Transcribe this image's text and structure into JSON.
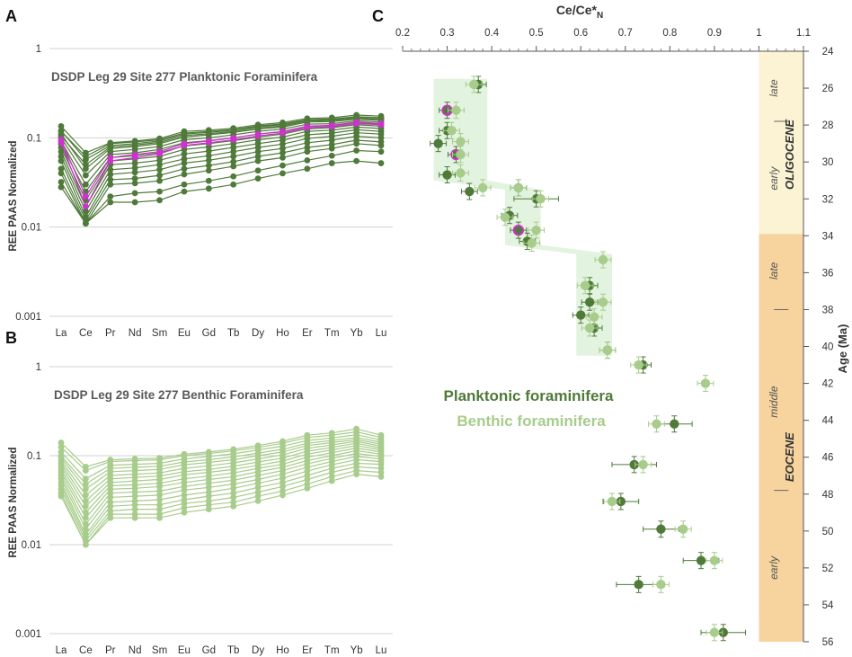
{
  "panels": {
    "a_label": "A",
    "b_label": "B",
    "c_label": "C"
  },
  "colors": {
    "planktonic": "#4f7a3a",
    "benthic": "#a8cc8c",
    "highlight": "#cc33cc",
    "oligocene_bg": "#fbf3d4",
    "eocene_bg": "#f7d39e",
    "band_fill": "#dff2dc"
  },
  "chart_data": [
    {
      "type": "line",
      "title": "DSDP Leg 29 Site 277 Planktonic Foraminifera",
      "ylabel": "REE PAAS Normalized",
      "yscale": "log",
      "ylim": [
        0.001,
        1
      ],
      "yticks": [
        "1",
        "0.1",
        "0.01",
        "0.001"
      ],
      "categories": [
        "La",
        "Ce",
        "Pr",
        "Nd",
        "Sm",
        "Eu",
        "Gd",
        "Tb",
        "Dy",
        "Ho",
        "Er",
        "Tm",
        "Yb",
        "Lu"
      ],
      "series": [
        {
          "name": "p1",
          "values": [
            0.135,
            0.068,
            0.088,
            0.092,
            0.098,
            0.118,
            0.122,
            0.128,
            0.14,
            0.148,
            0.165,
            0.168,
            0.18,
            0.175
          ]
        },
        {
          "name": "p2",
          "values": [
            0.12,
            0.057,
            0.082,
            0.086,
            0.092,
            0.11,
            0.115,
            0.122,
            0.133,
            0.14,
            0.158,
            0.16,
            0.17,
            0.165
          ]
        },
        {
          "name": "p3",
          "values": [
            0.11,
            0.045,
            0.076,
            0.08,
            0.086,
            0.102,
            0.108,
            0.115,
            0.125,
            0.132,
            0.15,
            0.152,
            0.162,
            0.157
          ]
        },
        {
          "name": "p4",
          "values": [
            0.1,
            0.038,
            0.07,
            0.074,
            0.08,
            0.095,
            0.1,
            0.108,
            0.118,
            0.125,
            0.142,
            0.144,
            0.155,
            0.15
          ]
        },
        {
          "name": "p5",
          "values": [
            0.092,
            0.03,
            0.065,
            0.068,
            0.074,
            0.088,
            0.093,
            0.1,
            0.11,
            0.117,
            0.134,
            0.137,
            0.148,
            0.142
          ]
        },
        {
          "name": "p6",
          "values": [
            0.085,
            0.025,
            0.06,
            0.063,
            0.068,
            0.081,
            0.086,
            0.093,
            0.102,
            0.11,
            0.126,
            0.13,
            0.14,
            0.135
          ]
        },
        {
          "name": "p7",
          "values": [
            0.078,
            0.02,
            0.055,
            0.058,
            0.062,
            0.074,
            0.079,
            0.086,
            0.095,
            0.102,
            0.118,
            0.122,
            0.132,
            0.127
          ]
        },
        {
          "name": "p8",
          "values": [
            0.07,
            0.017,
            0.05,
            0.052,
            0.056,
            0.066,
            0.071,
            0.078,
            0.086,
            0.094,
            0.108,
            0.113,
            0.123,
            0.118
          ]
        },
        {
          "name": "p9",
          "values": [
            0.062,
            0.015,
            0.044,
            0.046,
            0.05,
            0.058,
            0.063,
            0.07,
            0.078,
            0.085,
            0.098,
            0.104,
            0.114,
            0.11
          ]
        },
        {
          "name": "p10",
          "values": [
            0.055,
            0.013,
            0.039,
            0.041,
            0.044,
            0.052,
            0.056,
            0.062,
            0.07,
            0.076,
            0.088,
            0.094,
            0.104,
            0.1
          ]
        },
        {
          "name": "p11",
          "values": [
            0.045,
            0.012,
            0.034,
            0.035,
            0.038,
            0.045,
            0.049,
            0.054,
            0.062,
            0.068,
            0.078,
            0.084,
            0.094,
            0.09
          ]
        },
        {
          "name": "p12",
          "values": [
            0.04,
            0.011,
            0.03,
            0.031,
            0.033,
            0.039,
            0.043,
            0.048,
            0.055,
            0.06,
            0.07,
            0.076,
            0.086,
            0.082
          ]
        },
        {
          "name": "p13",
          "values": [
            0.032,
            0.011,
            0.022,
            0.024,
            0.025,
            0.03,
            0.033,
            0.037,
            0.043,
            0.049,
            0.056,
            0.063,
            0.072,
            0.07
          ]
        },
        {
          "name": "p14",
          "values": [
            0.028,
            0.011,
            0.019,
            0.019,
            0.02,
            0.025,
            0.027,
            0.03,
            0.035,
            0.04,
            0.045,
            0.052,
            0.055,
            0.052
          ]
        },
        {
          "name": "p15",
          "values": [
            0.118,
            0.062,
            0.086,
            0.09,
            0.095,
            0.113,
            0.118,
            0.124,
            0.136,
            0.143,
            0.16,
            0.163,
            0.172,
            0.168
          ]
        },
        {
          "name": "p16",
          "values": [
            0.105,
            0.05,
            0.079,
            0.083,
            0.089,
            0.106,
            0.111,
            0.118,
            0.129,
            0.136,
            0.154,
            0.156,
            0.166,
            0.16
          ]
        },
        {
          "name": "h1",
          "highlight": true,
          "values": [
            0.095,
            0.022,
            0.06,
            0.065,
            0.07,
            0.086,
            0.092,
            0.1,
            0.11,
            0.118,
            0.135,
            0.138,
            0.15,
            0.145
          ]
        },
        {
          "name": "h2",
          "highlight": true,
          "values": [
            0.088,
            0.017,
            0.055,
            0.06,
            0.066,
            0.082,
            0.088,
            0.095,
            0.105,
            0.113,
            0.13,
            0.133,
            0.144,
            0.14
          ]
        }
      ]
    },
    {
      "type": "line",
      "title": "DSDP Leg 29 Site 277 Benthic Foraminifera",
      "ylabel": "REE PAAS Normalized",
      "yscale": "log",
      "ylim": [
        0.001,
        1
      ],
      "yticks": [
        "1",
        "0.1",
        "0.01",
        "0.001"
      ],
      "categories": [
        "La",
        "Ce",
        "Pr",
        "Nd",
        "Sm",
        "Eu",
        "Gd",
        "Tb",
        "Dy",
        "Ho",
        "Er",
        "Tm",
        "Yb",
        "Lu"
      ],
      "series": [
        {
          "name": "b1",
          "values": [
            0.14,
            0.075,
            0.09,
            0.092,
            0.094,
            0.104,
            0.11,
            0.118,
            0.13,
            0.145,
            0.17,
            0.18,
            0.2,
            0.17
          ]
        },
        {
          "name": "b2",
          "values": [
            0.125,
            0.068,
            0.086,
            0.088,
            0.09,
            0.1,
            0.106,
            0.113,
            0.124,
            0.138,
            0.16,
            0.17,
            0.185,
            0.16
          ]
        },
        {
          "name": "b3",
          "values": [
            0.11,
            0.055,
            0.078,
            0.08,
            0.082,
            0.092,
            0.098,
            0.105,
            0.116,
            0.128,
            0.148,
            0.158,
            0.172,
            0.15
          ]
        },
        {
          "name": "b4",
          "values": [
            0.1,
            0.048,
            0.072,
            0.074,
            0.076,
            0.085,
            0.09,
            0.097,
            0.107,
            0.118,
            0.138,
            0.148,
            0.16,
            0.142
          ]
        },
        {
          "name": "b5",
          "values": [
            0.095,
            0.042,
            0.066,
            0.068,
            0.07,
            0.079,
            0.084,
            0.09,
            0.1,
            0.11,
            0.13,
            0.14,
            0.152,
            0.135
          ]
        },
        {
          "name": "b6",
          "values": [
            0.088,
            0.036,
            0.06,
            0.062,
            0.064,
            0.072,
            0.077,
            0.083,
            0.092,
            0.102,
            0.121,
            0.132,
            0.145,
            0.128
          ]
        },
        {
          "name": "b7",
          "values": [
            0.082,
            0.031,
            0.055,
            0.057,
            0.059,
            0.066,
            0.07,
            0.076,
            0.085,
            0.094,
            0.112,
            0.124,
            0.138,
            0.122
          ]
        },
        {
          "name": "b8",
          "values": [
            0.076,
            0.027,
            0.05,
            0.052,
            0.054,
            0.061,
            0.065,
            0.07,
            0.078,
            0.087,
            0.104,
            0.116,
            0.13,
            0.116
          ]
        },
        {
          "name": "b9",
          "values": [
            0.07,
            0.023,
            0.046,
            0.047,
            0.049,
            0.055,
            0.059,
            0.064,
            0.072,
            0.08,
            0.096,
            0.108,
            0.122,
            0.11
          ]
        },
        {
          "name": "b10",
          "values": [
            0.065,
            0.02,
            0.042,
            0.043,
            0.045,
            0.05,
            0.054,
            0.058,
            0.066,
            0.074,
            0.088,
            0.1,
            0.114,
            0.104
          ]
        },
        {
          "name": "b11",
          "values": [
            0.06,
            0.017,
            0.038,
            0.039,
            0.04,
            0.045,
            0.049,
            0.053,
            0.06,
            0.068,
            0.081,
            0.093,
            0.106,
            0.098
          ]
        },
        {
          "name": "b12",
          "values": [
            0.055,
            0.015,
            0.034,
            0.035,
            0.036,
            0.041,
            0.044,
            0.048,
            0.054,
            0.062,
            0.074,
            0.086,
            0.098,
            0.092
          ]
        },
        {
          "name": "b13",
          "values": [
            0.05,
            0.013,
            0.03,
            0.031,
            0.032,
            0.036,
            0.039,
            0.043,
            0.049,
            0.056,
            0.067,
            0.079,
            0.09,
            0.086
          ]
        },
        {
          "name": "b14",
          "values": [
            0.046,
            0.012,
            0.027,
            0.028,
            0.028,
            0.032,
            0.035,
            0.038,
            0.044,
            0.05,
            0.06,
            0.072,
            0.082,
            0.08
          ]
        },
        {
          "name": "b15",
          "values": [
            0.042,
            0.011,
            0.024,
            0.025,
            0.025,
            0.029,
            0.031,
            0.034,
            0.039,
            0.045,
            0.054,
            0.065,
            0.075,
            0.072
          ]
        },
        {
          "name": "b16",
          "values": [
            0.038,
            0.01,
            0.022,
            0.022,
            0.022,
            0.026,
            0.028,
            0.03,
            0.035,
            0.04,
            0.048,
            0.058,
            0.068,
            0.065
          ]
        },
        {
          "name": "b17",
          "values": [
            0.035,
            0.01,
            0.02,
            0.02,
            0.02,
            0.023,
            0.025,
            0.027,
            0.031,
            0.036,
            0.043,
            0.052,
            0.062,
            0.058
          ]
        }
      ]
    },
    {
      "type": "scatter",
      "xlabel": "Ce/Ce*N",
      "ylabel": "Age (Ma)",
      "xlim": [
        0.2,
        1.1
      ],
      "ylim": [
        24,
        56
      ],
      "xticks": [
        "0.2",
        "0.3",
        "0.4",
        "0.5",
        "0.6",
        "0.7",
        "0.8",
        "0.9",
        "1",
        "1.1"
      ],
      "yticks": [
        "24",
        "26",
        "28",
        "30",
        "32",
        "34",
        "36",
        "38",
        "40",
        "42",
        "44",
        "46",
        "48",
        "50",
        "52",
        "54",
        "56"
      ],
      "legend": [
        {
          "label": "Planktonic foraminifera"
        },
        {
          "label": "Benthic foraminifera"
        }
      ],
      "epochs": [
        {
          "name": "OLIGOCENE",
          "from": 24,
          "to": 33.9,
          "subdivisions": [
            "late",
            "early"
          ],
          "boundary": 27.8
        },
        {
          "name": "EOCENE",
          "from": 33.9,
          "to": 56,
          "subdivisions": [
            "late",
            "middle",
            "early"
          ],
          "boundaries": [
            38,
            47.8
          ]
        }
      ],
      "planktonic": [
        {
          "x": 0.37,
          "y": 25.8
        },
        {
          "x": 0.3,
          "y": 27.2,
          "highlight": true
        },
        {
          "x": 0.3,
          "y": 28.3
        },
        {
          "x": 0.28,
          "y": 29.0
        },
        {
          "x": 0.32,
          "y": 29.6,
          "highlight": true
        },
        {
          "x": 0.3,
          "y": 30.7
        },
        {
          "x": 0.35,
          "y": 31.6
        },
        {
          "x": 0.46,
          "y": 31.4
        },
        {
          "x": 0.5,
          "y": 32.0,
          "err": 0.05
        },
        {
          "x": 0.44,
          "y": 32.9
        },
        {
          "x": 0.46,
          "y": 33.7,
          "highlight": true
        },
        {
          "x": 0.48,
          "y": 34.3
        },
        {
          "x": 0.62,
          "y": 36.7
        },
        {
          "x": 0.62,
          "y": 37.6
        },
        {
          "x": 0.6,
          "y": 38.3
        },
        {
          "x": 0.63,
          "y": 39.0
        },
        {
          "x": 0.66,
          "y": 40.2
        },
        {
          "x": 0.74,
          "y": 41.0
        },
        {
          "x": 0.81,
          "y": 44.2,
          "err": 0.04
        },
        {
          "x": 0.72,
          "y": 46.4,
          "err": 0.05
        },
        {
          "x": 0.69,
          "y": 48.4,
          "err": 0.04
        },
        {
          "x": 0.78,
          "y": 49.9,
          "err": 0.04
        },
        {
          "x": 0.87,
          "y": 51.6,
          "err": 0.04
        },
        {
          "x": 0.73,
          "y": 52.9,
          "err": 0.05
        },
        {
          "x": 0.92,
          "y": 55.5,
          "err": 0.05
        }
      ],
      "benthic": [
        {
          "x": 0.36,
          "y": 25.8
        },
        {
          "x": 0.32,
          "y": 27.2
        },
        {
          "x": 0.31,
          "y": 28.3
        },
        {
          "x": 0.33,
          "y": 28.9
        },
        {
          "x": 0.33,
          "y": 29.6
        },
        {
          "x": 0.33,
          "y": 30.6
        },
        {
          "x": 0.38,
          "y": 31.4
        },
        {
          "x": 0.46,
          "y": 31.4
        },
        {
          "x": 0.51,
          "y": 32.0
        },
        {
          "x": 0.43,
          "y": 33.0
        },
        {
          "x": 0.5,
          "y": 33.7
        },
        {
          "x": 0.49,
          "y": 34.4
        },
        {
          "x": 0.65,
          "y": 35.3
        },
        {
          "x": 0.61,
          "y": 36.7
        },
        {
          "x": 0.65,
          "y": 37.6
        },
        {
          "x": 0.63,
          "y": 38.4
        },
        {
          "x": 0.62,
          "y": 39.0
        },
        {
          "x": 0.66,
          "y": 40.2
        },
        {
          "x": 0.73,
          "y": 41.0
        },
        {
          "x": 0.88,
          "y": 42.0
        },
        {
          "x": 0.77,
          "y": 44.2
        },
        {
          "x": 0.74,
          "y": 46.4
        },
        {
          "x": 0.67,
          "y": 48.4
        },
        {
          "x": 0.83,
          "y": 49.9
        },
        {
          "x": 0.9,
          "y": 51.6
        },
        {
          "x": 0.78,
          "y": 52.9
        },
        {
          "x": 0.9,
          "y": 55.5
        }
      ],
      "shaded_band_ce": [
        {
          "y": 25.5,
          "x0": 0.27,
          "x1": 0.39
        },
        {
          "y": 31.0,
          "x0": 0.27,
          "x1": 0.39
        },
        {
          "y": 31.5,
          "x0": 0.43,
          "x1": 0.51
        },
        {
          "y": 34.5,
          "x0": 0.43,
          "x1": 0.51
        },
        {
          "y": 35.0,
          "x0": 0.59,
          "x1": 0.67
        },
        {
          "y": 40.5,
          "x0": 0.59,
          "x1": 0.67
        }
      ]
    }
  ]
}
